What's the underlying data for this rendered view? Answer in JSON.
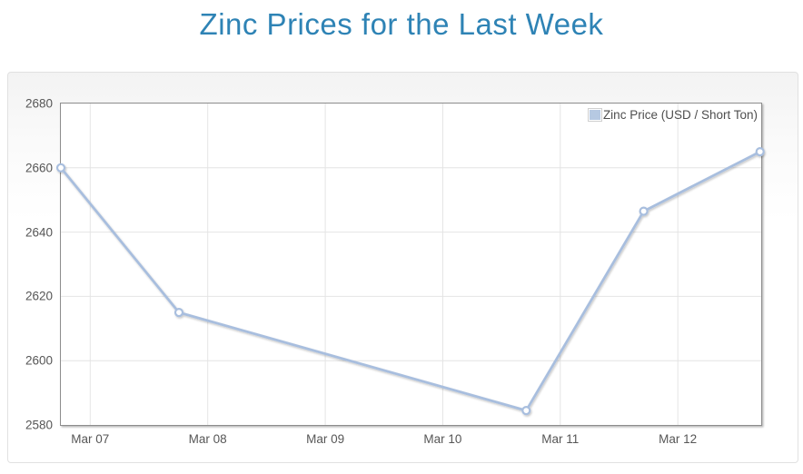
{
  "page": {
    "title": "Zinc Prices for the Last Week"
  },
  "colors": {
    "title": "#2e83b5",
    "series_line": "#a8bede",
    "marker_fill": "#ffffff",
    "legend_swatch": "#b6c9e2",
    "grid_line": "#e4e4e4",
    "plot_border": "#8d8d8d",
    "axis_text": "#565656"
  },
  "chart_data": {
    "type": "line",
    "title": "Zinc Prices for the Last Week",
    "legend": {
      "position": "top-right",
      "label": "Zinc Price (USD / Short Ton)"
    },
    "x_axis": {
      "label": "",
      "range": [
        -0.25,
        5.71
      ],
      "unit": "days relative to Mar 07",
      "ticks": [
        {
          "label": "Mar 07",
          "x": 0
        },
        {
          "label": "Mar 08",
          "x": 1
        },
        {
          "label": "Mar 09",
          "x": 2
        },
        {
          "label": "Mar 10",
          "x": 3
        },
        {
          "label": "Mar 11",
          "x": 4
        },
        {
          "label": "Mar 12",
          "x": 5
        }
      ]
    },
    "y_axis": {
      "label": "",
      "range": [
        2580,
        2680
      ],
      "ticks": [
        2580,
        2600,
        2620,
        2640,
        2660,
        2680
      ]
    },
    "grid": true,
    "series": [
      {
        "name": "Zinc Price (USD / Short Ton)",
        "color": "#a8bede",
        "points": [
          {
            "date": "Mar 06",
            "x": -0.25,
            "value": 2660
          },
          {
            "date": "Mar 07",
            "x": 0.755,
            "value": 2615
          },
          {
            "date": "Mar 10",
            "x": 3.71,
            "value": 2584.5
          },
          {
            "date": "Mar 11",
            "x": 4.71,
            "value": 2646.5
          },
          {
            "date": "Mar 12",
            "x": 5.7,
            "value": 2665
          }
        ]
      }
    ]
  }
}
